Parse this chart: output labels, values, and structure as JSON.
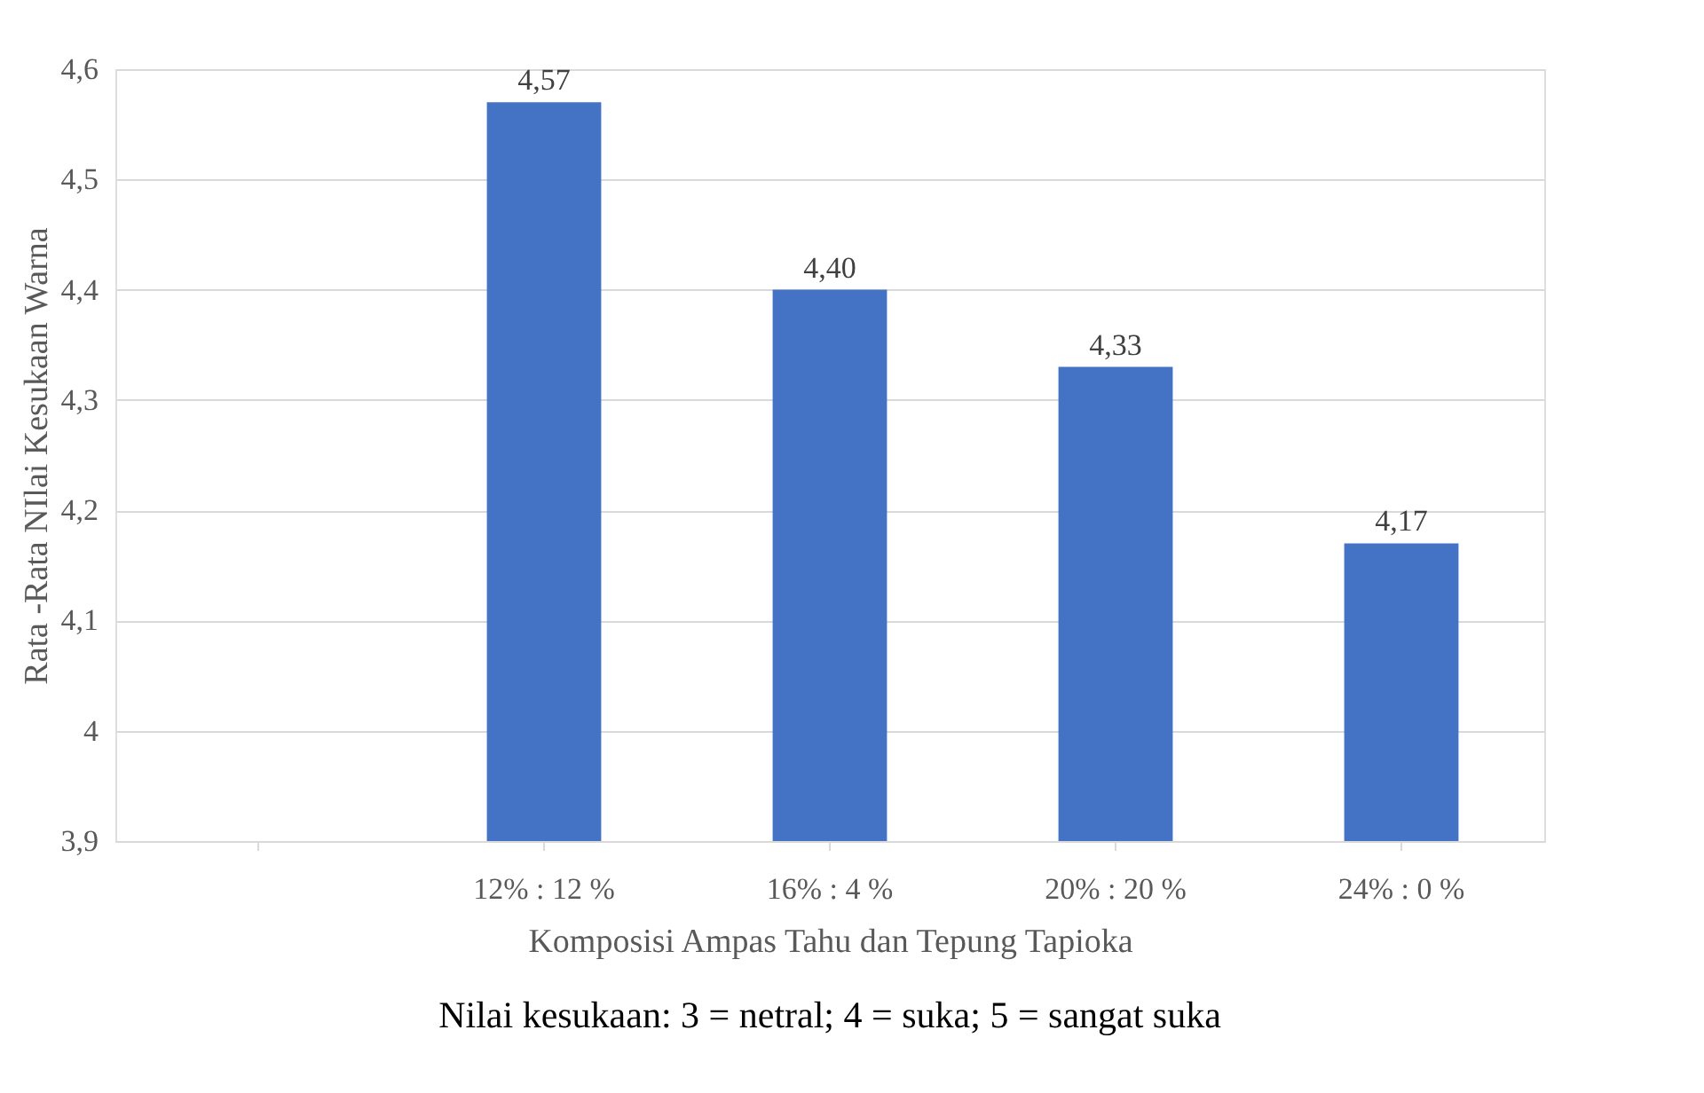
{
  "chart_data": {
    "type": "bar",
    "xlabel": "Komposisi Ampas Tahu dan Tepung Tapioka",
    "ylabel": "Rata -Rata NIlai Kesukaan Warna",
    "categories": [
      null,
      "12% : 12 %",
      "16% : 4 %",
      "20% : 20 %",
      "24% : 0 %"
    ],
    "values": [
      null,
      4.57,
      4.4,
      4.33,
      4.17
    ],
    "value_labels": [
      null,
      "4,57",
      "4,40",
      "4,33",
      "4,17"
    ],
    "color": "#4472c4",
    "ylim": [
      3.9,
      4.6
    ],
    "yticks": [
      {
        "value": 3.9,
        "label": "3,9"
      },
      {
        "value": 4.0,
        "label": "4"
      },
      {
        "value": 4.1,
        "label": "4,1"
      },
      {
        "value": 4.2,
        "label": "4,2"
      },
      {
        "value": 4.3,
        "label": "4,3"
      },
      {
        "value": 4.4,
        "label": "4,4"
      },
      {
        "value": 4.5,
        "label": "4,5"
      },
      {
        "value": 4.6,
        "label": "4,6"
      }
    ],
    "grid": "y",
    "annotations": [
      "Nilai kesukaan:  3 = netral; 4 = suka; 5 = sangat suka"
    ]
  }
}
